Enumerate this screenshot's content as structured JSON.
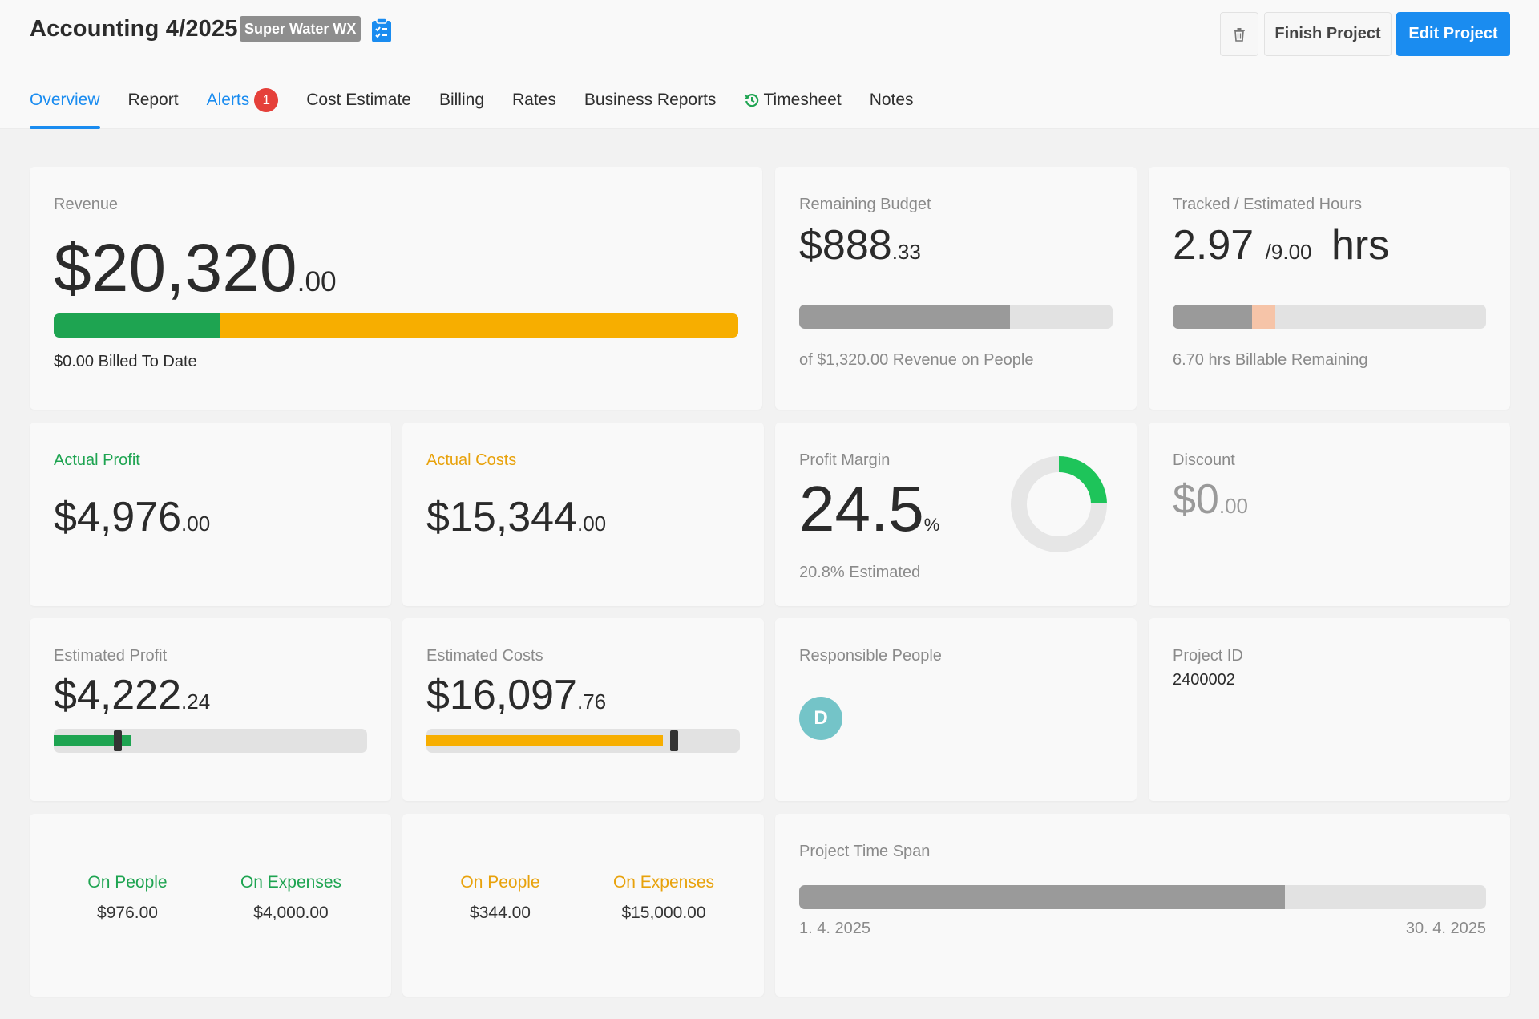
{
  "header": {
    "title": "Accounting 4/2025",
    "client": "Super Water WX",
    "buttons": {
      "finish": "Finish Project",
      "edit": "Edit Project"
    }
  },
  "tabs": [
    {
      "label": "Overview"
    },
    {
      "label": "Report"
    },
    {
      "label": "Alerts",
      "badge": "1"
    },
    {
      "label": "Cost Estimate"
    },
    {
      "label": "Billing"
    },
    {
      "label": "Rates"
    },
    {
      "label": "Business Reports"
    },
    {
      "label": "Timesheet"
    },
    {
      "label": "Notes"
    }
  ],
  "revenue": {
    "label": "Revenue",
    "whole": "$20,320",
    "cents": ".00",
    "billed": "$0.00 Billed To Date",
    "bar": {
      "green": 0.243,
      "amber": 0.757
    }
  },
  "remaining_budget": {
    "label": "Remaining Budget",
    "whole": "$888",
    "cents": ".33",
    "note": "of $1,320.00 Revenue on People",
    "bar": {
      "used": 0.673
    }
  },
  "hours": {
    "label": "Tracked / Estimated Hours",
    "tracked": "2.97",
    "sep": "/",
    "estimated": "9.00",
    "unit": "hrs",
    "note": "6.70 hrs Billable Remaining",
    "bar": {
      "tracked": 0.254,
      "extra": 0.074
    }
  },
  "actual_profit": {
    "label": "Actual Profit",
    "whole": "$4,976",
    "cents": ".00"
  },
  "actual_costs": {
    "label": "Actual Costs",
    "whole": "$15,344",
    "cents": ".00"
  },
  "profit_margin": {
    "label": "Profit Margin",
    "value": "24.5",
    "unit": "%",
    "estimated": "20.8% Estimated",
    "donut_fraction": 0.245
  },
  "discount": {
    "label": "Discount",
    "whole": "$0",
    "cents": ".00"
  },
  "estimated_profit": {
    "label": "Estimated Profit",
    "whole": "$4,222",
    "cents": ".24",
    "bar": {
      "fill": 0.245,
      "marker": 0.205
    }
  },
  "estimated_costs": {
    "label": "Estimated Costs",
    "whole": "$16,097",
    "cents": ".76",
    "bar": {
      "fill": 0.755,
      "marker": 0.79
    }
  },
  "responsible": {
    "label": "Responsible People",
    "avatar": "D"
  },
  "project_id": {
    "label": "Project ID",
    "value": "2400002"
  },
  "profit_split": {
    "people_label": "On People",
    "people_value": "$976.00",
    "expenses_label": "On Expenses",
    "expenses_value": "$4,000.00"
  },
  "cost_split": {
    "people_label": "On People",
    "people_value": "$344.00",
    "expenses_label": "On Expenses",
    "expenses_value": "$15,000.00"
  },
  "timespan": {
    "label": "Project Time Span",
    "start": "1. 4. 2025",
    "end": "30. 4. 2025",
    "elapsed": 0.707
  },
  "colors": {
    "accent": "#1a8cf0",
    "green": "#1ea451",
    "amber": "#f7ae00",
    "alert": "#e5403a",
    "bar_gray": "#9a9a9a",
    "track": "#e2e2e2",
    "hours_extra": "#f6c4a8",
    "avatar": "#74c4c8"
  }
}
